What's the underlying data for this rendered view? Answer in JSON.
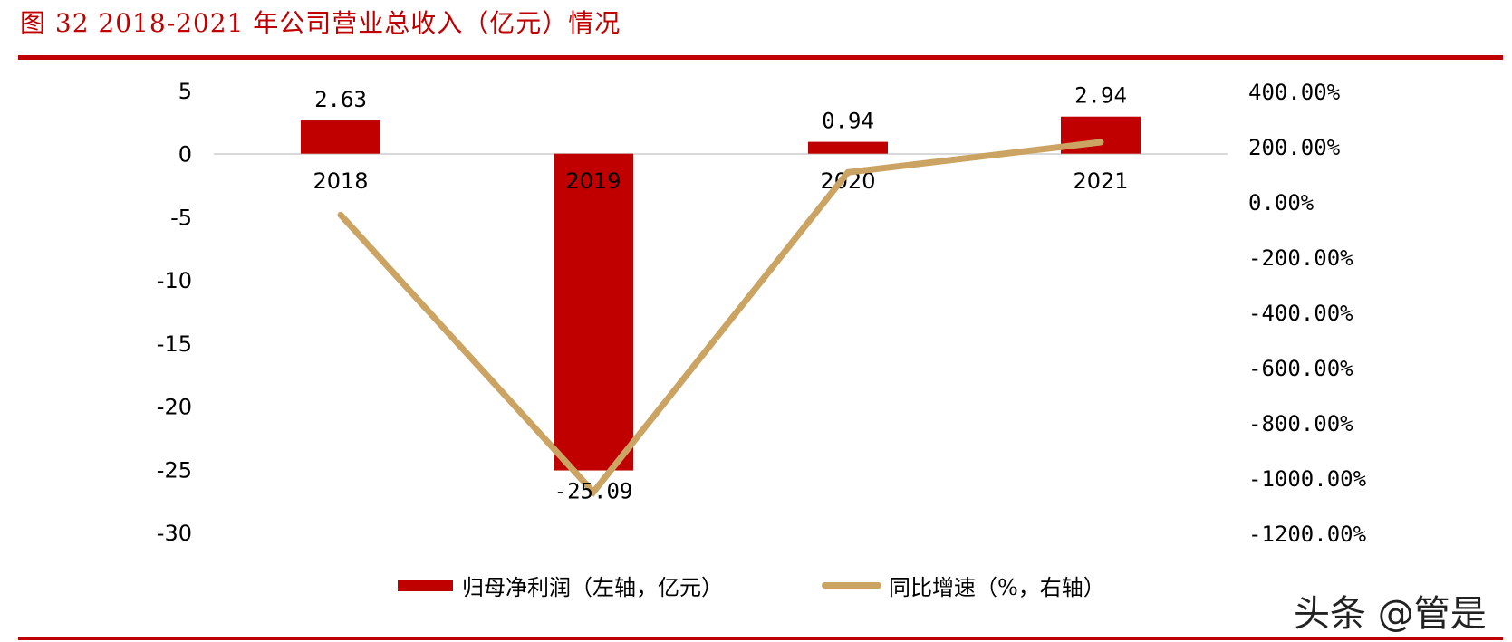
{
  "title": "图 32 2018-2021 年公司营业总收入（亿元）情况",
  "watermark": "头条 @管是",
  "colors": {
    "bar": "#C00000",
    "line": "#CBA463",
    "accent": "#C00000",
    "gridline": "#D9D9D9"
  },
  "legend": {
    "bar_label": "归母净利润（左轴，亿元）",
    "line_label": "同比增速（%，右轴）"
  },
  "chart_data": {
    "type": "bar+line",
    "title": "图 32 2018-2021 年公司营业总收入（亿元）情况",
    "categories": [
      "2018",
      "2019",
      "2020",
      "2021"
    ],
    "series": [
      {
        "name": "归母净利润（左轴，亿元）",
        "type": "bar",
        "axis": "left",
        "values": [
          2.63,
          -25.09,
          0.94,
          2.94
        ],
        "labels": [
          "2.63",
          "-25.09",
          "0.94",
          "2.94"
        ]
      },
      {
        "name": "同比增速（%，右轴）",
        "type": "line",
        "axis": "right",
        "values": [
          -50,
          -1054,
          104,
          213
        ]
      }
    ],
    "left_axis": {
      "ylim": [
        -30,
        5
      ],
      "ticks": [
        5,
        0,
        -5,
        -10,
        -15,
        -20,
        -25,
        -30
      ],
      "tick_labels": [
        "5",
        "0",
        "-5",
        "-10",
        "-15",
        "-20",
        "-25",
        "-30"
      ]
    },
    "right_axis": {
      "ylim": [
        -1200,
        400
      ],
      "ticks": [
        400,
        200,
        0,
        -200,
        -400,
        -600,
        -800,
        -1000,
        -1200
      ],
      "tick_labels": [
        "400.00%",
        "200.00%",
        "0.00%",
        "-200.00%",
        "-400.00%",
        "-600.00%",
        "-800.00%",
        "-1000.00%",
        "-1200.00%"
      ]
    },
    "xlabel": "",
    "ylabel": "",
    "grid": false,
    "legend_position": "bottom"
  }
}
